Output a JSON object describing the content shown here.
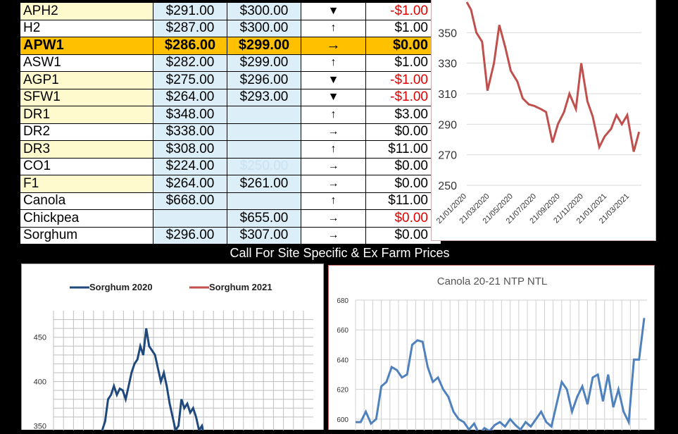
{
  "price_table": {
    "rows": [
      {
        "grade": "APH2",
        "price1": "$291.00",
        "price2": "$300.00",
        "trend_icon": "▼",
        "change": "-$1.00",
        "neg": true,
        "hl": false,
        "yellow": true
      },
      {
        "grade": "H2",
        "price1": "$287.00",
        "price2": "$300.00",
        "trend_icon": "↑",
        "change": "$1.00",
        "neg": false,
        "hl": false,
        "yellow": false
      },
      {
        "grade": "APW1",
        "price1": "$286.00",
        "price2": "$299.00",
        "trend_icon": "→",
        "change": "$0.00",
        "neg": false,
        "hl": true,
        "yellow": false
      },
      {
        "grade": "ASW1",
        "price1": "$282.00",
        "price2": "$299.00",
        "trend_icon": "↑",
        "change": "$1.00",
        "neg": false,
        "hl": false,
        "yellow": false
      },
      {
        "grade": "AGP1",
        "price1": "$275.00",
        "price2": "$296.00",
        "trend_icon": "▼",
        "change": "-$1.00",
        "neg": true,
        "hl": false,
        "yellow": true
      },
      {
        "grade": "SFW1",
        "price1": "$264.00",
        "price2": "$293.00",
        "trend_icon": "▼",
        "change": "-$1.00",
        "neg": true,
        "hl": false,
        "yellow": true
      },
      {
        "grade": "DR1",
        "price1": "$348.00",
        "price2": "",
        "trend_icon": "↑",
        "change": "$3.00",
        "neg": false,
        "hl": false,
        "yellow": true
      },
      {
        "grade": "DR2",
        "price1": "$338.00",
        "price2": "",
        "trend_icon": "→",
        "change": "$0.00",
        "neg": false,
        "hl": false,
        "yellow": false
      },
      {
        "grade": "DR3",
        "price1": "$308.00",
        "price2": "",
        "trend_icon": "↑",
        "change": "$11.00",
        "neg": false,
        "hl": false,
        "yellow": true
      },
      {
        "grade": "CO1",
        "price1": "$224.00",
        "price2": "$250.00",
        "price2_faded": true,
        "trend_icon": "→",
        "change": "$0.00",
        "neg": false,
        "hl": false,
        "yellow": false
      },
      {
        "grade": "F1",
        "price1": "$264.00",
        "price2": "$261.00",
        "trend_icon": "→",
        "change": "$0.00",
        "neg": false,
        "hl": false,
        "yellow": true
      },
      {
        "grade": "Canola",
        "price1": "$668.00",
        "price2": "",
        "trend_icon": "↑",
        "change": "$11.00",
        "neg": false,
        "hl": false,
        "yellow": false
      },
      {
        "grade": "Chickpea",
        "price1": "",
        "price2": "$655.00",
        "trend_icon": "→",
        "change": "$0.00",
        "neg": true,
        "hl": false,
        "yellow": false
      },
      {
        "grade": "Sorghum",
        "price1": "$296.00",
        "price2": "$307.00",
        "trend_icon": "→",
        "change": "$0.00",
        "neg": false,
        "hl": false,
        "yellow": false
      }
    ]
  },
  "banner": {
    "text": "Call For Site Specific & Ex Farm Prices"
  },
  "colors": {
    "red_line": "#c0504d",
    "navy_line": "#1f497d",
    "blue_line": "#4f81bd",
    "highlight": "#ffc000",
    "neg_text": "#e00000"
  },
  "chart_data": [
    {
      "type": "line",
      "title": "",
      "ylim": [
        250,
        370
      ],
      "y_ticks": [
        250,
        270,
        290,
        310,
        330,
        350
      ],
      "x_ticks": [
        "21/01/2020",
        "21/03/2020",
        "21/05/2020",
        "21/07/2020",
        "21/09/2020",
        "21/11/2020",
        "21/01/2021",
        "21/03/2021"
      ],
      "x_range": [
        "2020-01-21",
        "2021-04-21"
      ],
      "grid": true,
      "series": [
        {
          "name": "",
          "color": "#c0504d",
          "x": [
            "2020-01-21",
            "2020-02-01",
            "2020-02-15",
            "2020-03-01",
            "2020-03-15",
            "2020-04-01",
            "2020-04-15",
            "2020-05-01",
            "2020-05-15",
            "2020-06-01",
            "2020-06-15",
            "2020-07-01",
            "2020-07-15",
            "2020-08-01",
            "2020-08-15",
            "2020-09-01",
            "2020-09-15",
            "2020-10-01",
            "2020-10-15",
            "2020-11-01",
            "2020-11-15",
            "2020-12-01",
            "2020-12-15",
            "2021-01-01",
            "2021-01-15",
            "2021-02-01",
            "2021-02-15",
            "2021-03-01",
            "2021-03-15",
            "2021-04-01",
            "2021-04-15"
          ],
          "values": [
            370,
            365,
            350,
            344,
            312,
            330,
            355,
            340,
            325,
            318,
            307,
            303,
            302,
            300,
            298,
            278,
            290,
            298,
            310,
            300,
            330,
            305,
            295,
            275,
            282,
            287,
            296,
            290,
            296,
            272,
            285
          ]
        }
      ]
    },
    {
      "type": "line",
      "title": "",
      "ylim": [
        340,
        480
      ],
      "y_ticks": [
        350,
        400,
        450
      ],
      "grid": true,
      "legend": "top",
      "series": [
        {
          "name": "Sorghum 2020",
          "color": "#1f497d",
          "values": [
            340,
            345,
            355,
            380,
            385,
            395,
            385,
            392,
            390,
            380,
            395,
            410,
            420,
            425,
            440,
            430,
            460,
            440,
            435,
            430,
            415,
            400,
            410,
            395,
            375,
            360,
            345,
            350,
            380,
            370,
            375,
            365,
            370,
            360,
            345,
            350,
            335
          ]
        },
        {
          "name": "Sorghum 2021",
          "color": "#c0504d",
          "values": []
        }
      ]
    },
    {
      "type": "line",
      "title": "Canola 20-21 NTP NTL",
      "ylim": [
        590,
        680
      ],
      "y_ticks": [
        600,
        620,
        640,
        660,
        680
      ],
      "grid": true,
      "series": [
        {
          "name": "",
          "color": "#4f81bd",
          "values": [
            598,
            598,
            605,
            597,
            600,
            622,
            625,
            635,
            633,
            628,
            630,
            650,
            653,
            652,
            635,
            625,
            628,
            620,
            615,
            605,
            600,
            598,
            593,
            597,
            590,
            594,
            592,
            596,
            598,
            595,
            600,
            596,
            593,
            598,
            595,
            600,
            605,
            598,
            595,
            610,
            625,
            620,
            605,
            615,
            622,
            610,
            628,
            630,
            612,
            630,
            608,
            620,
            605,
            598,
            640,
            640,
            668
          ]
        }
      ]
    }
  ]
}
